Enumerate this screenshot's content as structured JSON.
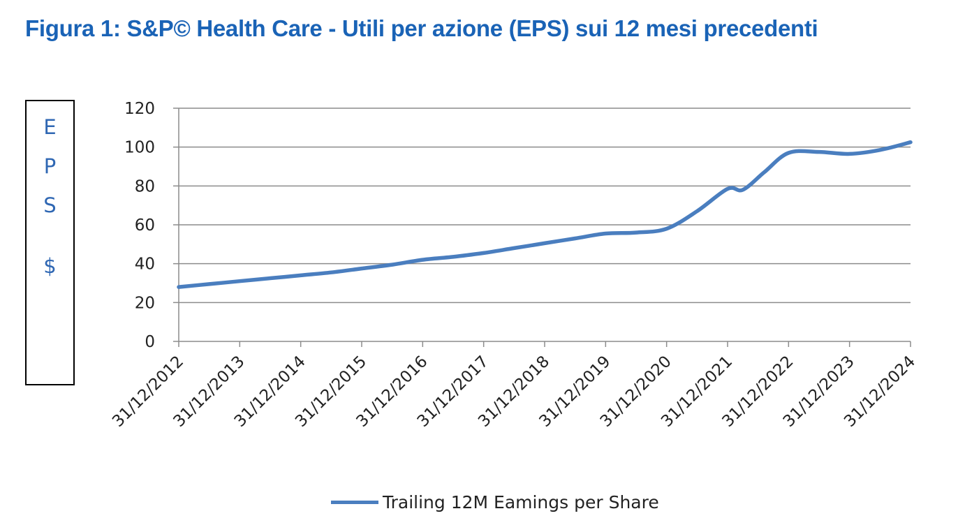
{
  "chart_data": {
    "type": "line",
    "title": "Figura 1: S&P© Health Care - Utili per azione (EPS) sui 12 mesi precedenti",
    "ylabel_letters": [
      "E",
      "P",
      "S",
      "$"
    ],
    "xlabel": "",
    "categories": [
      "31/12/2012",
      "31/12/2013",
      "31/12/2014",
      "31/12/2015",
      "31/12/2016",
      "31/12/2017",
      "31/12/2018",
      "31/12/2019",
      "31/12/2020",
      "31/12/2021",
      "31/12/2022",
      "31/12/2023",
      "31/12/2024"
    ],
    "y_ticks": [
      0,
      20,
      40,
      60,
      80,
      100,
      120
    ],
    "ylim": [
      0,
      120
    ],
    "grid": true,
    "legend_position": "bottom",
    "series": [
      {
        "name": "Trailing 12M Eamings per Share",
        "color": "#4a7ebf",
        "points": [
          {
            "x": 0,
            "y": 28
          },
          {
            "x": 0.5,
            "y": 29.5
          },
          {
            "x": 1,
            "y": 31
          },
          {
            "x": 1.5,
            "y": 32.5
          },
          {
            "x": 2,
            "y": 34
          },
          {
            "x": 2.5,
            "y": 35.5
          },
          {
            "x": 3,
            "y": 37.5
          },
          {
            "x": 3.5,
            "y": 39.5
          },
          {
            "x": 4,
            "y": 42
          },
          {
            "x": 4.5,
            "y": 43.5
          },
          {
            "x": 5,
            "y": 45.5
          },
          {
            "x": 5.5,
            "y": 48
          },
          {
            "x": 6,
            "y": 50.5
          },
          {
            "x": 6.5,
            "y": 53
          },
          {
            "x": 7,
            "y": 55.5
          },
          {
            "x": 7.5,
            "y": 56
          },
          {
            "x": 8,
            "y": 58
          },
          {
            "x": 8.5,
            "y": 67
          },
          {
            "x": 9,
            "y": 78.5
          },
          {
            "x": 9.25,
            "y": 78
          },
          {
            "x": 9.6,
            "y": 87
          },
          {
            "x": 10,
            "y": 97
          },
          {
            "x": 10.5,
            "y": 97.5
          },
          {
            "x": 11,
            "y": 96.5
          },
          {
            "x": 11.5,
            "y": 98.5
          },
          {
            "x": 12,
            "y": 102.5
          }
        ]
      }
    ]
  }
}
